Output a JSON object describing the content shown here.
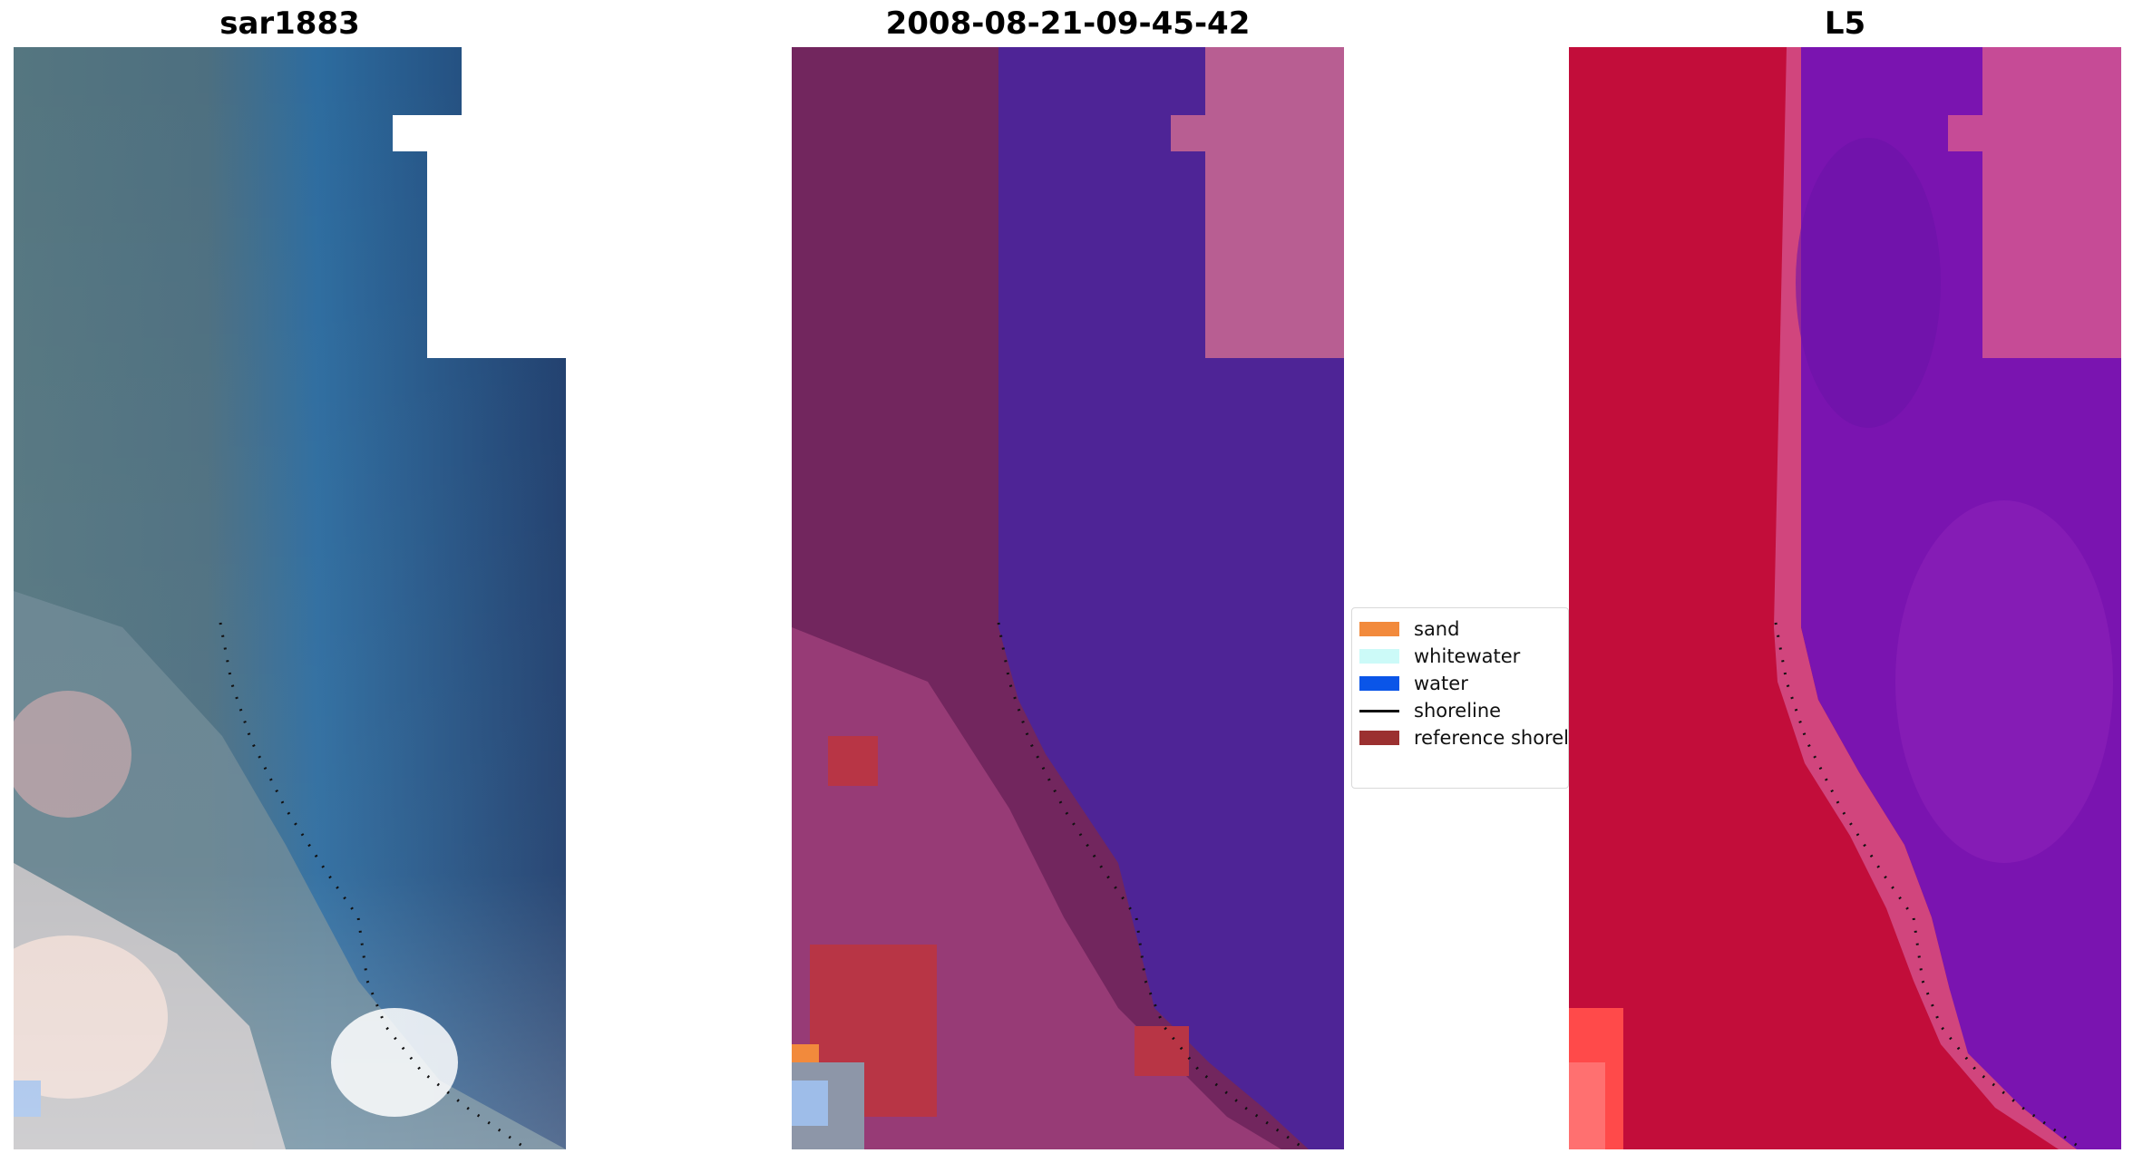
{
  "panels": [
    {
      "title": "sar1883",
      "kind": "rgb"
    },
    {
      "title": "2008-08-21-09-45-42",
      "kind": "classified"
    },
    {
      "title": "L5",
      "kind": "index"
    }
  ],
  "legend": {
    "items": [
      {
        "label": "sand",
        "color": "#f28a3c",
        "type": "patch"
      },
      {
        "label": "whitewater",
        "color": "#ccfaf8",
        "type": "patch"
      },
      {
        "label": "water",
        "color": "#0a55e8",
        "type": "patch"
      },
      {
        "label": "shoreline",
        "color": "#111111",
        "type": "line"
      },
      {
        "label": "reference shoreline",
        "color": "#9b3030",
        "type": "patch"
      }
    ]
  },
  "colors": {
    "rgb_land": "#4f6e7a",
    "rgb_water": "#1f3f6e",
    "rgb_nearshore": "#2e74a8",
    "rgb_beach": "#e9e2e0",
    "class_land": "#72265e",
    "class_water": "#4e2496",
    "class_nodata": "#b85e92",
    "class_ref": "#b83545",
    "index_land": "#c20d3a",
    "index_water": "#7a14b0",
    "index_nodata": "#c64b96"
  }
}
